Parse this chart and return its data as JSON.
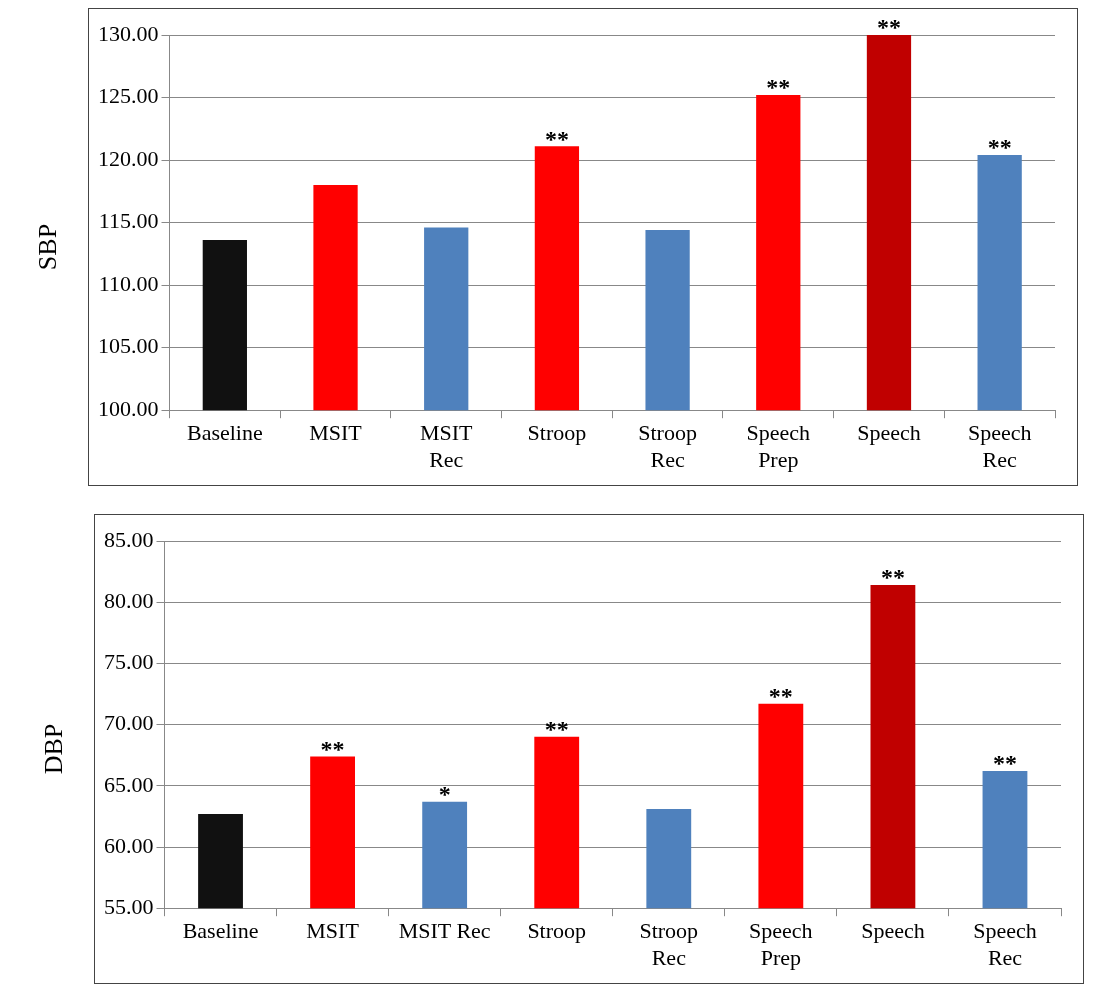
{
  "chart_data": [
    {
      "type": "bar",
      "ylabel": "SBP",
      "categories": [
        "Baseline",
        "MSIT",
        "MSIT\nRec",
        "Stroop",
        "Stroop\nRec",
        "Speech\nPrep",
        "Speech",
        "Speech\nRec"
      ],
      "values": [
        113.6,
        118.0,
        114.6,
        121.1,
        114.4,
        125.2,
        130.0,
        120.4
      ],
      "colors": [
        "#111111",
        "#ff0000",
        "#4f81bd",
        "#ff0000",
        "#4f81bd",
        "#ff0000",
        "#c00000",
        "#4f81bd"
      ],
      "ylim": [
        100,
        130
      ],
      "yticks": [
        {
          "value": 100,
          "label": "100.00"
        },
        {
          "value": 105,
          "label": "105.00"
        },
        {
          "value": 110,
          "label": "110.00"
        },
        {
          "value": 115,
          "label": "115.00"
        },
        {
          "value": 120,
          "label": "120.00"
        },
        {
          "value": 125,
          "label": "125.00"
        },
        {
          "value": 130,
          "label": "130.00"
        }
      ],
      "grid": "y",
      "legend": false,
      "annotations": [
        {
          "text": "**",
          "x": "Stroop",
          "y": 121.1
        },
        {
          "text": "**",
          "x": "Speech\nPrep",
          "y": 125.2
        },
        {
          "text": "**",
          "x": "Speech",
          "y": 130.0
        },
        {
          "text": "**",
          "x": "Speech\nRec",
          "y": 120.4
        }
      ]
    },
    {
      "type": "bar",
      "ylabel": "DBP",
      "categories": [
        "Baseline",
        "MSIT",
        "MSIT Rec",
        "Stroop",
        "Stroop\nRec",
        "Speech\nPrep",
        "Speech",
        "Speech\nRec"
      ],
      "values": [
        62.7,
        67.4,
        63.7,
        69.0,
        63.1,
        71.7,
        81.4,
        66.2
      ],
      "colors": [
        "#111111",
        "#ff0000",
        "#4f81bd",
        "#ff0000",
        "#4f81bd",
        "#ff0000",
        "#c00000",
        "#4f81bd"
      ],
      "ylim": [
        55,
        85
      ],
      "yticks": [
        {
          "value": 55,
          "label": "55.00"
        },
        {
          "value": 60,
          "label": "60.00"
        },
        {
          "value": 65,
          "label": "65.00"
        },
        {
          "value": 70,
          "label": "70.00"
        },
        {
          "value": 75,
          "label": "75.00"
        },
        {
          "value": 80,
          "label": "80.00"
        },
        {
          "value": 85,
          "label": "85.00"
        }
      ],
      "grid": "y",
      "legend": false,
      "annotations": [
        {
          "text": "**",
          "x": "MSIT",
          "y": 67.4
        },
        {
          "text": "*",
          "x": "MSIT Rec",
          "y": 63.7
        },
        {
          "text": "**",
          "x": "Stroop",
          "y": 69.0
        },
        {
          "text": "**",
          "x": "Speech\nPrep",
          "y": 71.7
        },
        {
          "text": "**",
          "x": "Speech",
          "y": 81.4
        },
        {
          "text": "**",
          "x": "Speech\nRec",
          "y": 66.2
        }
      ]
    }
  ]
}
